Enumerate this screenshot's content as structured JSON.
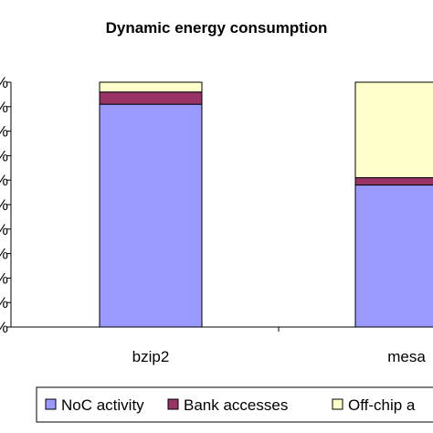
{
  "chart_data": {
    "type": "bar",
    "stacked": true,
    "percent_stacked": true,
    "title": "Dynamic energy consumption",
    "xlabel": "",
    "ylabel": "",
    "ylim": [
      0,
      100
    ],
    "grid": false,
    "legend_position": "bottom",
    "categories": [
      "bzip2",
      "mesa"
    ],
    "series": [
      {
        "name": "NoC activity",
        "values": [
          91,
          58
        ],
        "color": "#9999ff"
      },
      {
        "name": "Bank accesses",
        "values": [
          5,
          3
        ],
        "color": "#993366"
      },
      {
        "name": "Off-chip a",
        "values": [
          4,
          39
        ],
        "color": "#ffffcc"
      }
    ]
  }
}
